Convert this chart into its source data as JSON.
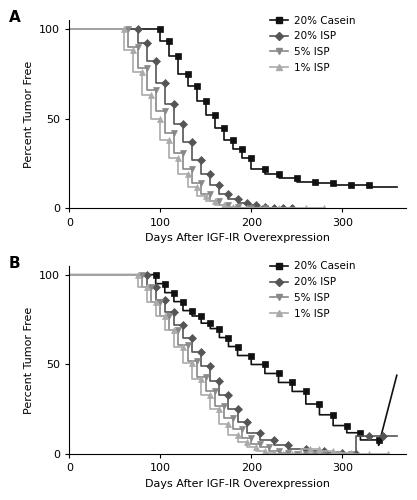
{
  "panel_A": {
    "casein": {
      "x": [
        0,
        100,
        100,
        110,
        110,
        120,
        120,
        130,
        130,
        140,
        140,
        150,
        150,
        160,
        160,
        170,
        170,
        180,
        180,
        190,
        190,
        200,
        200,
        215,
        215,
        230,
        230,
        250,
        250,
        270,
        270,
        290,
        290,
        310,
        310,
        330,
        330,
        360
      ],
      "y": [
        100,
        100,
        93,
        93,
        85,
        85,
        75,
        75,
        68,
        68,
        60,
        60,
        52,
        52,
        45,
        45,
        38,
        38,
        33,
        33,
        28,
        28,
        22,
        22,
        19,
        19,
        17,
        17,
        15,
        15,
        14,
        14,
        13,
        13,
        13,
        13,
        12,
        12
      ],
      "color": "#111111",
      "marker": "s",
      "markersize": 4,
      "label": "20% Casein"
    },
    "isp20": {
      "x": [
        0,
        75,
        75,
        85,
        85,
        95,
        95,
        105,
        105,
        115,
        115,
        125,
        125,
        135,
        135,
        145,
        145,
        155,
        155,
        165,
        165,
        175,
        175,
        185,
        185,
        195,
        195,
        205,
        205,
        215,
        215,
        225,
        225,
        235,
        235,
        245,
        245
      ],
      "y": [
        100,
        100,
        92,
        92,
        82,
        82,
        70,
        70,
        58,
        58,
        47,
        47,
        37,
        37,
        27,
        27,
        19,
        19,
        13,
        13,
        8,
        8,
        5,
        5,
        3,
        3,
        2,
        2,
        1,
        1,
        0,
        0,
        0,
        0,
        0,
        0,
        0
      ],
      "color": "#555555",
      "marker": "D",
      "markersize": 4,
      "label": "20% ISP"
    },
    "isp5": {
      "x": [
        0,
        65,
        65,
        75,
        75,
        85,
        85,
        95,
        95,
        105,
        105,
        115,
        115,
        125,
        125,
        135,
        135,
        145,
        145,
        155,
        155,
        165,
        165,
        175,
        175,
        185,
        185,
        200,
        200,
        215,
        215
      ],
      "y": [
        100,
        100,
        90,
        90,
        78,
        78,
        66,
        66,
        54,
        54,
        42,
        42,
        31,
        31,
        22,
        22,
        14,
        14,
        8,
        8,
        4,
        4,
        2,
        2,
        1,
        1,
        0,
        0,
        0,
        0,
        0
      ],
      "color": "#888888",
      "marker": "v",
      "markersize": 4,
      "label": "5% ISP"
    },
    "isp1": {
      "x": [
        0,
        60,
        60,
        70,
        70,
        80,
        80,
        90,
        90,
        100,
        100,
        110,
        110,
        120,
        120,
        130,
        130,
        140,
        140,
        150,
        150,
        160,
        160,
        170,
        170,
        180,
        180,
        195,
        195,
        210,
        210,
        230,
        230,
        260,
        260,
        280,
        280
      ],
      "y": [
        100,
        100,
        88,
        88,
        76,
        76,
        63,
        63,
        50,
        50,
        38,
        38,
        28,
        28,
        19,
        19,
        12,
        12,
        7,
        7,
        4,
        4,
        2,
        2,
        1,
        1,
        0,
        0,
        0,
        0,
        0,
        0,
        0,
        0,
        0,
        0,
        0
      ],
      "color": "#aaaaaa",
      "marker": "^",
      "markersize": 4,
      "label": "1% ISP"
    }
  },
  "panel_B": {
    "casein": {
      "x": [
        0,
        95,
        95,
        105,
        105,
        115,
        115,
        125,
        125,
        135,
        135,
        145,
        145,
        155,
        155,
        165,
        165,
        175,
        175,
        185,
        185,
        200,
        200,
        215,
        215,
        230,
        230,
        245,
        245,
        260,
        260,
        275,
        275,
        290,
        290,
        305,
        305,
        320,
        320,
        340,
        340,
        360
      ],
      "y": [
        100,
        100,
        95,
        95,
        90,
        90,
        85,
        85,
        80,
        80,
        77,
        77,
        73,
        73,
        70,
        70,
        65,
        65,
        60,
        60,
        55,
        55,
        50,
        50,
        45,
        45,
        40,
        40,
        35,
        35,
        28,
        28,
        22,
        22,
        16,
        16,
        12,
        12,
        8,
        8,
        5,
        44
      ],
      "color": "#111111",
      "marker": "s",
      "markersize": 4,
      "label": "20% Casein"
    },
    "isp20": {
      "x": [
        0,
        85,
        85,
        95,
        95,
        105,
        105,
        115,
        115,
        125,
        125,
        135,
        135,
        145,
        145,
        155,
        155,
        165,
        165,
        175,
        175,
        185,
        185,
        195,
        195,
        210,
        210,
        225,
        225,
        240,
        240,
        260,
        260,
        280,
        280,
        300,
        300,
        315,
        315,
        330,
        330,
        345,
        345,
        360
      ],
      "y": [
        100,
        100,
        93,
        93,
        86,
        86,
        79,
        79,
        72,
        72,
        65,
        65,
        57,
        57,
        49,
        49,
        41,
        41,
        33,
        33,
        25,
        25,
        18,
        18,
        12,
        12,
        8,
        8,
        5,
        5,
        3,
        3,
        2,
        2,
        1,
        1,
        0,
        0,
        10,
        10,
        10,
        10,
        10,
        10
      ],
      "color": "#555555",
      "marker": "D",
      "markersize": 4,
      "label": "20% ISP"
    },
    "isp5": {
      "x": [
        0,
        80,
        80,
        90,
        90,
        100,
        100,
        110,
        110,
        120,
        120,
        130,
        130,
        140,
        140,
        150,
        150,
        160,
        160,
        170,
        170,
        180,
        180,
        190,
        190,
        200,
        200,
        210,
        210,
        220,
        220,
        230,
        230,
        240,
        240,
        250,
        250,
        260,
        260,
        270,
        270,
        280,
        280,
        295,
        295,
        310,
        310
      ],
      "y": [
        100,
        100,
        93,
        93,
        85,
        85,
        77,
        77,
        69,
        69,
        61,
        61,
        52,
        52,
        43,
        43,
        35,
        35,
        27,
        27,
        20,
        20,
        14,
        14,
        9,
        9,
        6,
        6,
        4,
        4,
        2,
        2,
        1,
        1,
        0,
        0,
        0,
        0,
        0,
        0,
        0,
        0,
        0,
        0,
        0,
        0,
        0
      ],
      "color": "#888888",
      "marker": "v",
      "markersize": 4,
      "label": "5% ISP"
    },
    "isp1": {
      "x": [
        0,
        75,
        75,
        85,
        85,
        95,
        95,
        105,
        105,
        115,
        115,
        125,
        125,
        135,
        135,
        145,
        145,
        155,
        155,
        165,
        165,
        175,
        175,
        185,
        185,
        195,
        195,
        205,
        205,
        215,
        215,
        225,
        225,
        235,
        235,
        245,
        245,
        255,
        255,
        265,
        265,
        275,
        275,
        290,
        290,
        310,
        310,
        330,
        330,
        350,
        350
      ],
      "y": [
        100,
        100,
        93,
        93,
        85,
        85,
        77,
        77,
        69,
        69,
        60,
        60,
        51,
        51,
        42,
        42,
        33,
        33,
        25,
        25,
        17,
        17,
        11,
        11,
        7,
        7,
        4,
        4,
        2,
        2,
        1,
        1,
        0,
        0,
        0,
        0,
        0,
        0,
        3,
        3,
        3,
        3,
        2,
        2,
        1,
        1,
        0,
        0,
        0,
        0,
        0
      ],
      "color": "#aaaaaa",
      "marker": "^",
      "markersize": 4,
      "label": "1% ISP"
    }
  },
  "xlabel": "Days After IGF-IR Overexpression",
  "ylabel": "Percent Tumor Free",
  "xlim": [
    0,
    370
  ],
  "ylim": [
    0,
    105
  ],
  "xticks": [
    0,
    100,
    200,
    300
  ],
  "yticks": [
    0,
    50,
    100
  ],
  "background_color": "#ffffff",
  "linewidth": 1.2
}
